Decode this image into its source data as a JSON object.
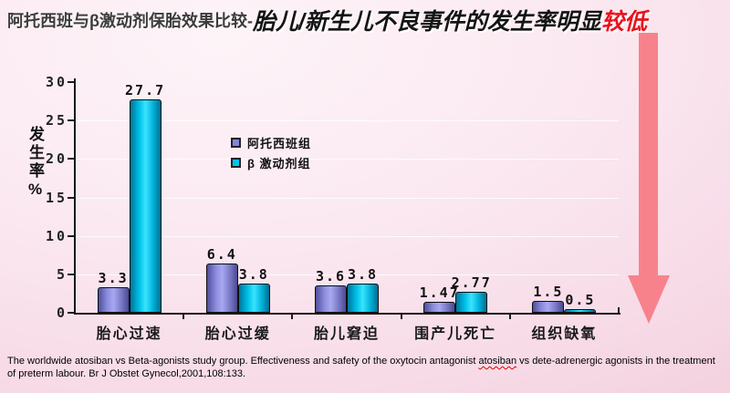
{
  "title": {
    "part1": "阿托西班与β激动剂保胎效果比较-",
    "part2": "胎儿/新生儿不良事件的发生率明显",
    "part3": "较低"
  },
  "chart_data": {
    "type": "bar",
    "categories": [
      "胎心过速",
      "胎心过缓",
      "胎儿窘迫",
      "围产儿死亡",
      "组织缺氧"
    ],
    "series": [
      {
        "name": "阿托西班组",
        "color": "#8585d6",
        "values": [
          3.3,
          6.4,
          3.6,
          1.47,
          1.5
        ]
      },
      {
        "name": "β 激动剂组",
        "color": "#00c2e8",
        "values": [
          27.7,
          3.8,
          3.8,
          2.77,
          0.5
        ]
      }
    ],
    "value_labels": [
      [
        "3.3",
        "27.7"
      ],
      [
        "6.4",
        "3.8"
      ],
      [
        "3.6",
        "3.8"
      ],
      [
        "1.47",
        "2.77"
      ],
      [
        "1.5",
        "0.5"
      ]
    ],
    "ylabel": "发生率%",
    "ylim": [
      0,
      30
    ],
    "yticks": [
      0,
      5,
      10,
      15,
      20,
      25,
      30
    ],
    "grid": true,
    "legend_position": "upper-center"
  },
  "citation": {
    "part1": "The worldwide atosiban vs Beta-agonists study group. Effectiveness and safety of the oxytocin antagonist  ",
    "marked": "atosiban",
    "part2": " vs dete-adrenergic agonists in the treatment of preterm labour. Br J Obstet Gynecol,2001,108:133."
  },
  "colors": {
    "atosiban_bar": "#8585d6",
    "beta_agonist_bar": "#00c2e8",
    "arrow": "#f8828b",
    "title_highlight_red": "#e8111c",
    "background_pink": "#f7dbe7"
  }
}
